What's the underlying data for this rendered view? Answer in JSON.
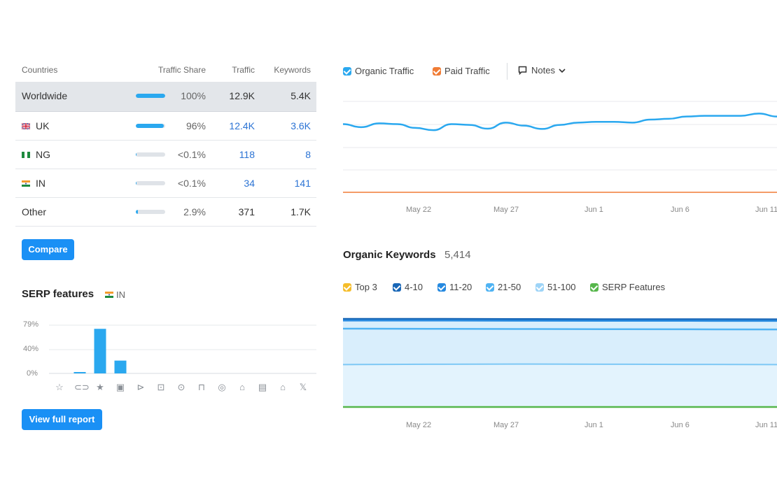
{
  "countries": {
    "headers": {
      "country": "Countries",
      "share": "Traffic Share",
      "traffic": "Traffic",
      "keywords": "Keywords"
    },
    "rows": [
      {
        "name": "Worldwide",
        "share": "100%",
        "share_value": 100,
        "traffic": "12.9K",
        "keywords": "5.4K",
        "flag": ""
      },
      {
        "name": "UK",
        "share": "96%",
        "share_value": 96,
        "traffic": "12.4K",
        "keywords": "3.6K",
        "flag": "uk-flag-icon"
      },
      {
        "name": "NG",
        "share": "<0.1%",
        "share_value": 0.1,
        "traffic": "118",
        "keywords": "8",
        "flag": "ng-flag-icon"
      },
      {
        "name": "IN",
        "share": "<0.1%",
        "share_value": 0.1,
        "traffic": "34",
        "keywords": "141",
        "flag": "in-flag-icon"
      },
      {
        "name": "Other",
        "share": "2.9%",
        "share_value": 2.9,
        "traffic": "371",
        "keywords": "1.7K",
        "flag": ""
      }
    ],
    "compare_label": "Compare"
  },
  "serp": {
    "title": "SERP features",
    "location": "IN",
    "view_label": "View full report",
    "y_ticks": [
      "79%",
      "40%",
      "0%"
    ],
    "icons": [
      "star-outline-icon",
      "link-icon",
      "star-icon",
      "image-icon",
      "video-icon",
      "image-pack-icon",
      "featured-video-icon",
      "faq-icon",
      "local-pack-icon",
      "knowledge-icon",
      "document-icon",
      "shopping-icon",
      "twitter-icon"
    ],
    "icon_glyphs": [
      "☆",
      "⊂⊃",
      "★",
      "▣",
      "⊳",
      "⊡",
      "⊙",
      "⊓",
      "◎",
      "⌂",
      "▤",
      "⌂",
      "𝕏"
    ]
  },
  "traffic_chart": {
    "legend": {
      "organic": "Organic Traffic",
      "paid": "Paid Traffic",
      "notes": "Notes"
    },
    "colors": {
      "organic": "#2aa8ef",
      "paid": "#f07c35",
      "accent": "#1a90f5"
    },
    "x_ticks": [
      "May 22",
      "May 27",
      "Jun 1",
      "Jun 6",
      "Jun 11"
    ]
  },
  "keywords_chart": {
    "title": "Organic Keywords",
    "count": "5,414",
    "legend": [
      {
        "label": "Top 3",
        "color": "#f5bd2b"
      },
      {
        "label": "4-10",
        "color": "#1967b7"
      },
      {
        "label": "11-20",
        "color": "#2589e0"
      },
      {
        "label": "21-50",
        "color": "#4fb3f3"
      },
      {
        "label": "51-100",
        "color": "#9ed4f7"
      },
      {
        "label": "SERP Features",
        "color": "#56b64b"
      }
    ],
    "x_ticks": [
      "May 22",
      "May 27",
      "Jun 1",
      "Jun 6",
      "Jun 11"
    ]
  },
  "chart_data": [
    {
      "type": "bar",
      "categories": [
        "star-outline",
        "link",
        "star",
        "image",
        "video",
        "image-pack",
        "featured-video",
        "faq",
        "local-pack",
        "knowledge",
        "document",
        "shopping",
        "twitter"
      ],
      "values": [
        0,
        2,
        73,
        21,
        0,
        0,
        0,
        0,
        0,
        0,
        0,
        0,
        0
      ],
      "ylim": [
        0,
        79
      ],
      "title": "SERP features"
    },
    {
      "type": "line",
      "series": [
        {
          "name": "Organic Traffic",
          "values": [
            450,
            430,
            455,
            450,
            425,
            410,
            450,
            445,
            420,
            460,
            440,
            418,
            445,
            460,
            465,
            465,
            460,
            480,
            485,
            500,
            505,
            505,
            505,
            520,
            500
          ]
        },
        {
          "name": "Paid Traffic",
          "values": [
            0,
            0,
            0,
            0,
            0,
            0,
            0,
            0,
            0,
            0,
            0,
            0,
            0,
            0,
            0,
            0,
            0,
            0,
            0,
            0,
            0,
            0,
            0,
            0,
            0
          ]
        }
      ],
      "x_ticks": [
        "May 22",
        "May 27",
        "Jun 1",
        "Jun 6",
        "Jun 11"
      ],
      "ylim": [
        0,
        600
      ]
    },
    {
      "type": "area",
      "series": [
        {
          "name": "Top 3",
          "values": [
            5400,
            5400,
            5390,
            5380,
            5380,
            5375
          ]
        },
        {
          "name": "4-10",
          "values": [
            5300,
            5300,
            5290,
            5280,
            5280,
            5275
          ]
        },
        {
          "name": "11-20",
          "values": [
            4800,
            4790,
            4780,
            4770,
            4760,
            4750
          ]
        },
        {
          "name": "21-50",
          "values": [
            2600,
            2620,
            2630,
            2620,
            2610,
            2600
          ]
        },
        {
          "name": "51-100",
          "values": [
            0,
            0,
            0,
            0,
            0,
            0
          ]
        },
        {
          "name": "SERP Features",
          "values": [
            0,
            0,
            0,
            0,
            0,
            0
          ]
        }
      ],
      "x_ticks": [
        "May 22",
        "May 27",
        "Jun 1",
        "Jun 6",
        "Jun 11"
      ],
      "ylim": [
        0,
        6000
      ]
    }
  ]
}
